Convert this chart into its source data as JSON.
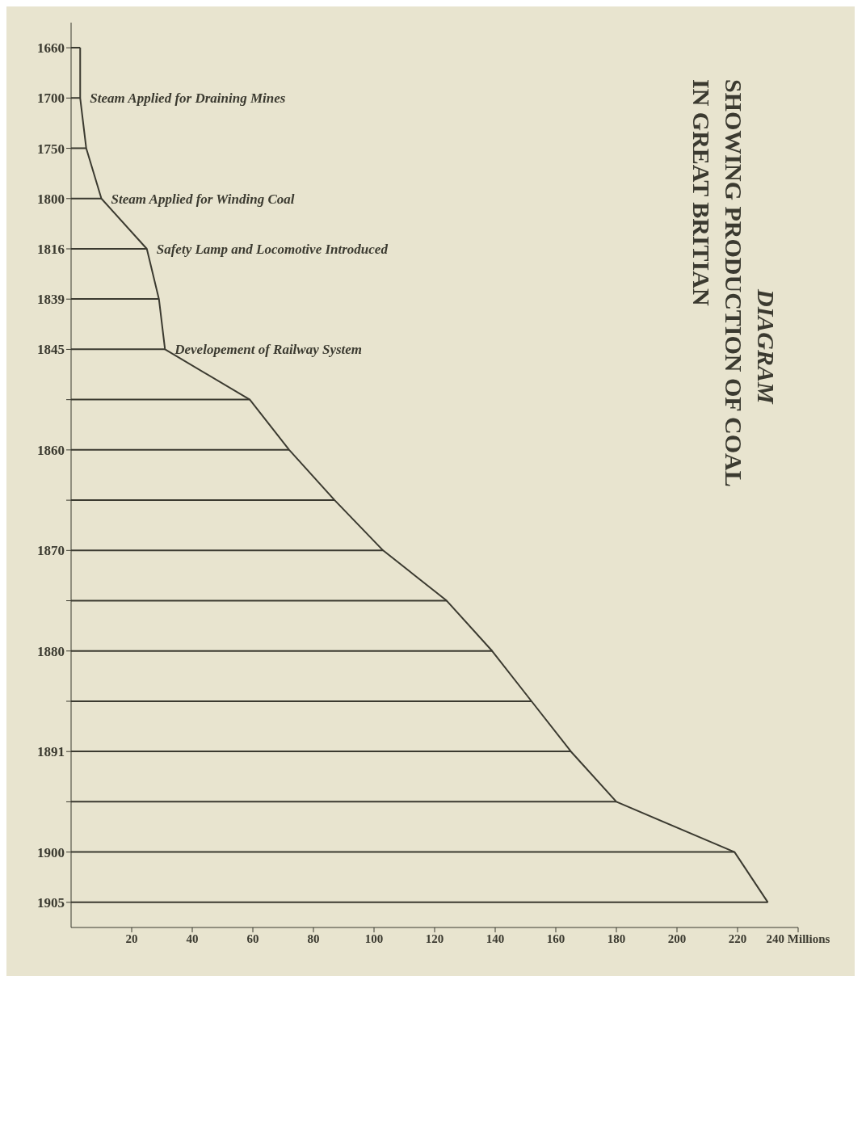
{
  "chart_data": {
    "type": "bar",
    "orientation": "horizontal",
    "title": "DIAGRAM\nSHOWING PRODUCTION OF COAL\nIN GREAT BRITIAN",
    "categories": [
      "1660",
      "1700",
      "1750",
      "1800",
      "1816",
      "1839",
      "1845",
      null,
      "1860",
      null,
      "1870",
      null,
      "1880",
      null,
      "1891",
      null,
      "1900",
      "1905"
    ],
    "series": [
      {
        "color": "#3b3a30",
        "values": [
          3,
          3,
          5,
          10,
          25,
          29,
          31,
          59,
          72,
          87,
          103,
          124,
          139,
          152,
          165,
          180,
          219,
          230
        ]
      },
      {
        "type": "line",
        "color": "#3b3a30",
        "values": [
          3,
          3,
          5,
          10,
          25,
          29,
          31,
          59,
          72,
          87,
          103,
          124,
          139,
          152,
          165,
          180,
          219,
          230
        ]
      }
    ],
    "xlim": [
      0,
      240
    ],
    "xticks": [
      20,
      40,
      60,
      80,
      100,
      120,
      140,
      160,
      180,
      200,
      220,
      {
        "value": 240,
        "label": "240 Millions"
      }
    ],
    "annotations": [
      {
        "text": "Steam Applied for Draining Mines",
        "x": 3,
        "y": "1700"
      },
      {
        "text": "Steam Applied for Winding Coal",
        "x": 10,
        "y": "1800"
      },
      {
        "text": "Safety Lamp and Locomotive Introduced",
        "x": 25,
        "y": "1816"
      },
      {
        "text": "Developement of Railway System",
        "x": 31,
        "y": "1845"
      }
    ]
  }
}
